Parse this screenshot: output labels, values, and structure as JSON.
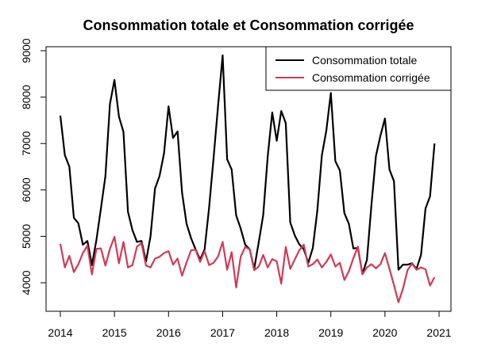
{
  "chart_data": {
    "type": "line",
    "title": "Consommation totale et Consommation corrigée",
    "xlabel": "",
    "ylabel": "",
    "xlim": [
      2014,
      2021
    ],
    "ylim": [
      3300,
      9150
    ],
    "x_ticks": [
      "2014",
      "2015",
      "2016",
      "2017",
      "2018",
      "2019",
      "2020",
      "2021"
    ],
    "y_ticks": [
      "4000",
      "5000",
      "6000",
      "7000",
      "8000",
      "9000"
    ],
    "grid": false,
    "legend_position": "top-right",
    "x_start": 2014.0,
    "x_step_months": 1,
    "series": [
      {
        "name": "Consommation totale",
        "color": "#000000",
        "values": [
          7600,
          6750,
          6500,
          5400,
          5280,
          4820,
          4900,
          4380,
          4920,
          5600,
          6300,
          7850,
          8370,
          7580,
          7250,
          5530,
          5130,
          4880,
          4900,
          4460,
          5000,
          6030,
          6300,
          6790,
          7800,
          7120,
          7260,
          5940,
          5270,
          4960,
          4720,
          4500,
          4720,
          5620,
          6700,
          7830,
          8900,
          6660,
          6440,
          5450,
          5170,
          4820,
          4720,
          4300,
          4870,
          5460,
          6720,
          7670,
          7060,
          7700,
          7440,
          5300,
          5020,
          4830,
          4720,
          4430,
          4750,
          5550,
          6740,
          7280,
          8090,
          6620,
          6420,
          5500,
          5270,
          4740,
          4750,
          4190,
          4490,
          5670,
          6730,
          7170,
          7540,
          6440,
          6190,
          4280,
          4390,
          4390,
          4420,
          4300,
          4600,
          5600,
          5860,
          7000
        ]
      },
      {
        "name": "Consommation corrigée",
        "color": "#d03a57",
        "values": [
          4840,
          4330,
          4580,
          4230,
          4400,
          4640,
          4800,
          4180,
          4730,
          4740,
          4370,
          4730,
          4990,
          4420,
          4880,
          4330,
          4380,
          4780,
          4850,
          4370,
          4330,
          4520,
          4560,
          4640,
          4680,
          4390,
          4520,
          4150,
          4440,
          4700,
          4710,
          4450,
          4680,
          4380,
          4430,
          4570,
          4880,
          4280,
          4660,
          3900,
          4560,
          4770,
          4720,
          4270,
          4350,
          4600,
          4330,
          4510,
          4460,
          3980,
          4770,
          4300,
          4500,
          4700,
          4820,
          4350,
          4400,
          4500,
          4330,
          4450,
          4610,
          4350,
          4430,
          4060,
          4250,
          4530,
          4780,
          4180,
          4330,
          4400,
          4310,
          4400,
          4640,
          4300,
          3950,
          3580,
          3870,
          4270,
          4410,
          4280,
          4330,
          4290,
          3940,
          4120
        ]
      }
    ]
  }
}
